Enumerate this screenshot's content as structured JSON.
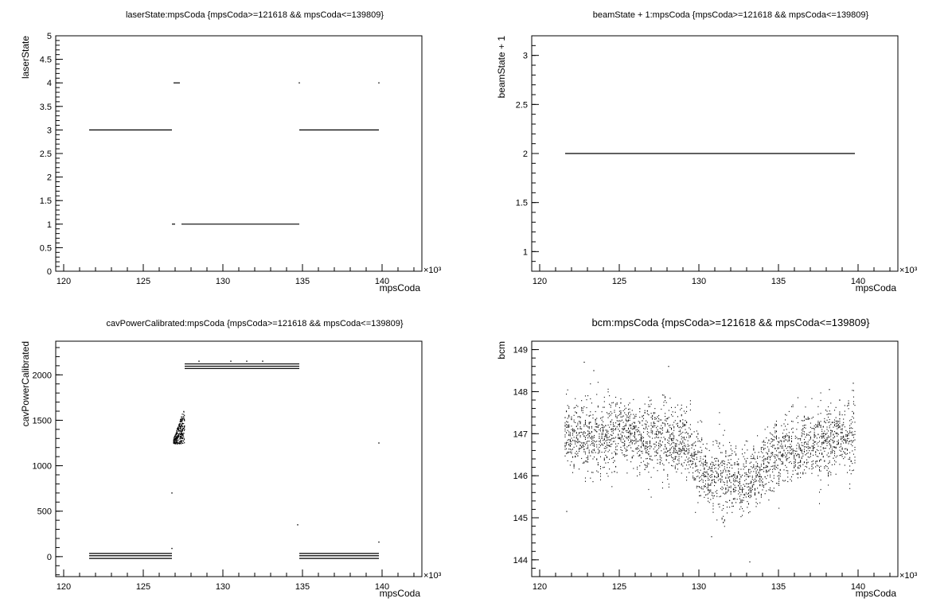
{
  "chart_data": [
    {
      "type": "scatter",
      "title": "laserState:mpsCoda {mpsCoda>=121618 && mpsCoda<=139809}",
      "xlabel": "mpsCoda",
      "ylabel": "laserState",
      "x_multiplier": "×10³",
      "xlim": [
        119.5,
        142.5
      ],
      "ylim": [
        0,
        5
      ],
      "x_ticks": [
        "120",
        "125",
        "130",
        "135",
        "140"
      ],
      "y_ticks": [
        "0",
        "0.5",
        "1",
        "1.5",
        "2",
        "2.5",
        "3",
        "3.5",
        "4",
        "4.5",
        "5"
      ],
      "grid": false,
      "segments": [
        {
          "x": [
            121.6,
            126.8
          ],
          "y": 3
        },
        {
          "x": [
            134.8,
            139.8
          ],
          "y": 3
        },
        {
          "x": [
            126.9,
            127.3
          ],
          "y": 4
        },
        {
          "x": [
            127.4,
            134.8
          ],
          "y": 1
        },
        {
          "x": [
            126.8,
            127.0
          ],
          "y": 1
        }
      ],
      "points": [
        {
          "x": 134.8,
          "y": 4
        },
        {
          "x": 139.8,
          "y": 4
        }
      ]
    },
    {
      "type": "scatter",
      "title": "beamState + 1:mpsCoda {mpsCoda>=121618 && mpsCoda<=139809}",
      "xlabel": "mpsCoda",
      "ylabel": "beamState + 1",
      "x_multiplier": "×10³",
      "xlim": [
        119.5,
        142.5
      ],
      "ylim": [
        0.8,
        3.2
      ],
      "x_ticks": [
        "120",
        "125",
        "130",
        "135",
        "140"
      ],
      "y_ticks": [
        "1",
        "1.5",
        "2",
        "2.5",
        "3"
      ],
      "grid": false,
      "segments": [
        {
          "x": [
            121.6,
            139.8
          ],
          "y": 2
        }
      ]
    },
    {
      "type": "scatter",
      "title": "cavPowerCalibrated:mpsCoda {mpsCoda>=121618 && mpsCoda<=139809}",
      "xlabel": "mpsCoda",
      "ylabel": "cavPowerCalibrated",
      "x_multiplier": "×10³",
      "xlim": [
        119.5,
        142.5
      ],
      "ylim": [
        -220,
        2370
      ],
      "x_ticks": [
        "120",
        "125",
        "130",
        "135",
        "140"
      ],
      "y_ticks": [
        "0",
        "500",
        "1000",
        "1500",
        "2000"
      ],
      "grid": false,
      "segments": [
        {
          "x": [
            121.6,
            126.8
          ],
          "y": 35
        },
        {
          "x": [
            121.6,
            126.8
          ],
          "y": 10
        },
        {
          "x": [
            121.6,
            126.8
          ],
          "y": -20
        },
        {
          "x": [
            134.8,
            139.8
          ],
          "y": 35
        },
        {
          "x": [
            134.8,
            139.8
          ],
          "y": 10
        },
        {
          "x": [
            134.8,
            139.8
          ],
          "y": -20
        },
        {
          "x": [
            127.6,
            134.8
          ],
          "y": 2120
        },
        {
          "x": [
            127.6,
            134.8
          ],
          "y": 2095
        },
        {
          "x": [
            127.6,
            134.8
          ],
          "y": 2070
        }
      ],
      "cluster": {
        "x_start": 126.9,
        "x_end": 127.6,
        "y_min": 1240,
        "y_max": 1640
      },
      "points": [
        {
          "x": 126.8,
          "y": 700
        },
        {
          "x": 126.8,
          "y": 90
        },
        {
          "x": 134.7,
          "y": 350
        },
        {
          "x": 139.8,
          "y": 1250
        },
        {
          "x": 139.8,
          "y": 160
        },
        {
          "x": 128.5,
          "y": 2150
        },
        {
          "x": 130.5,
          "y": 2150
        },
        {
          "x": 131.5,
          "y": 2150
        },
        {
          "x": 132.5,
          "y": 2150
        }
      ]
    },
    {
      "type": "scatter",
      "title": "bcm:mpsCoda {mpsCoda>=121618 && mpsCoda<=139809}",
      "xlabel": "mpsCoda",
      "ylabel": "bcm",
      "x_multiplier": "×10³",
      "xlim": [
        119.5,
        142.5
      ],
      "ylim": [
        143.6,
        149.2
      ],
      "x_ticks": [
        "120",
        "125",
        "130",
        "135",
        "140"
      ],
      "y_ticks": [
        "144",
        "145",
        "146",
        "147",
        "148",
        "149"
      ],
      "grid": false,
      "x_range": [
        121.6,
        139.8
      ],
      "mean_profile": [
        {
          "x": 121.6,
          "y": 146.9
        },
        {
          "x": 125.0,
          "y": 147.0
        },
        {
          "x": 129.0,
          "y": 146.8
        },
        {
          "x": 130.5,
          "y": 146.0
        },
        {
          "x": 132.0,
          "y": 145.9
        },
        {
          "x": 133.5,
          "y": 146.0
        },
        {
          "x": 135.0,
          "y": 146.5
        },
        {
          "x": 137.5,
          "y": 146.8
        },
        {
          "x": 139.8,
          "y": 147.0
        }
      ],
      "spread": 0.65,
      "extremes": [
        {
          "x": 121.7,
          "y": 145.15
        },
        {
          "x": 122.8,
          "y": 148.7
        },
        {
          "x": 123.4,
          "y": 148.5
        },
        {
          "x": 128.1,
          "y": 148.6
        },
        {
          "x": 130.8,
          "y": 144.55
        },
        {
          "x": 133.2,
          "y": 143.95
        },
        {
          "x": 138.2,
          "y": 148.05
        },
        {
          "x": 139.7,
          "y": 148.2
        }
      ]
    }
  ]
}
